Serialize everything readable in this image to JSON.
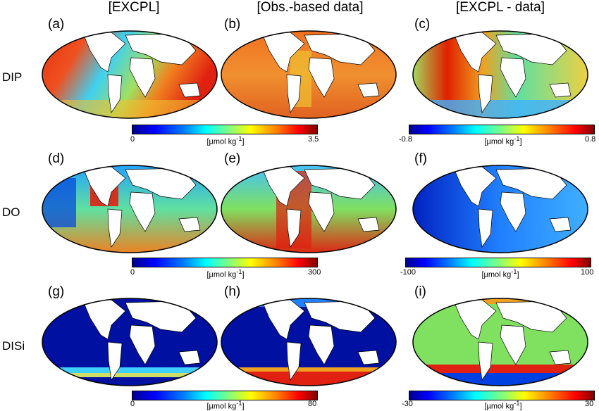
{
  "columns": [
    "[EXCPL]",
    "[Obs.-based data]",
    "[EXCPL - data]"
  ],
  "rows": [
    {
      "label": "DIP",
      "panels": [
        "(a)",
        "(b)",
        "(c)"
      ],
      "scale": {
        "min": "0",
        "max": "3.5",
        "unit": "[µmol kg",
        "unit_sup": "-1",
        "unit_end": "]"
      },
      "diff_scale": {
        "min": "-0.8",
        "max": "0.8",
        "unit": "[µmol kg",
        "unit_sup": "-1",
        "unit_end": "]"
      }
    },
    {
      "label": "DO",
      "panels": [
        "(d)",
        "(e)",
        "(f)"
      ],
      "scale": {
        "min": "0",
        "max": "300",
        "unit": "[µmol kg",
        "unit_sup": "-1",
        "unit_end": "]"
      },
      "diff_scale": {
        "min": "-100",
        "max": "100",
        "unit": "[µmol kg",
        "unit_sup": "-1",
        "unit_end": "]"
      }
    },
    {
      "label": "DISi",
      "panels": [
        "(g)",
        "(h)",
        "(i)"
      ],
      "scale": {
        "min": "0",
        "max": "80",
        "unit": "[µmol kg",
        "unit_sup": "-1",
        "unit_end": "]"
      },
      "diff_scale": {
        "min": "-30",
        "max": "30",
        "unit": "[µmol kg",
        "unit_sup": "-1",
        "unit_end": "]"
      }
    }
  ],
  "colors": {
    "ocean_high": "#e02000",
    "ocean_mid": "#f0a020",
    "ocean_low": "#30c0ff",
    "deep_blue": "#0010a0",
    "green": "#80e060",
    "land": "#ffffff"
  }
}
